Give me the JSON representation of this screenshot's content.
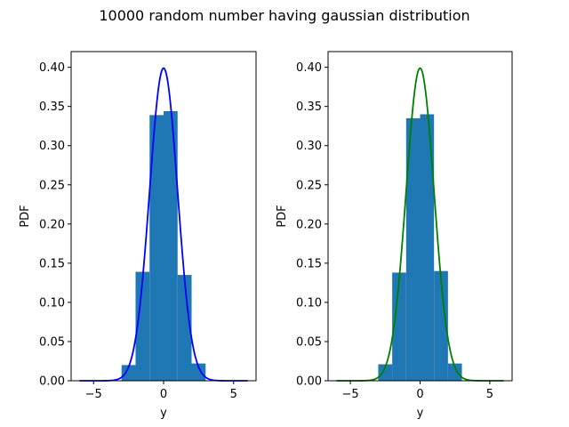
{
  "figure": {
    "suptitle": "10000 random number having gaussian distribution"
  },
  "chart_data": [
    {
      "type": "bar",
      "subtype": "histogram-with-pdf-curve",
      "xlabel": "y",
      "ylabel": "PDF",
      "xlim": [
        -6.6,
        6.6
      ],
      "ylim": [
        0,
        0.42
      ],
      "xticks": [
        -5,
        0,
        5
      ],
      "xtick_labels": [
        "−5",
        "0",
        "5"
      ],
      "yticks": [
        0.0,
        0.05,
        0.1,
        0.15,
        0.2,
        0.25,
        0.3,
        0.35,
        0.4
      ],
      "ytick_labels": [
        "0.00",
        "0.05",
        "0.10",
        "0.15",
        "0.20",
        "0.25",
        "0.30",
        "0.35",
        "0.40"
      ],
      "grid": false,
      "bar_color": "#1f77b4",
      "bins": [
        {
          "x0": -3,
          "x1": -2,
          "density": 0.02
        },
        {
          "x0": -2,
          "x1": -1,
          "density": 0.139
        },
        {
          "x0": -1,
          "x1": 0,
          "density": 0.339
        },
        {
          "x0": 0,
          "x1": 1,
          "density": 0.344
        },
        {
          "x0": 1,
          "x1": 2,
          "density": 0.135
        },
        {
          "x0": 2,
          "x1": 3,
          "density": 0.022
        }
      ],
      "curve": {
        "label": "",
        "color": "#0000ff",
        "mu": 0,
        "sigma": 1,
        "x_range": [
          -6,
          6
        ]
      }
    },
    {
      "type": "bar",
      "subtype": "histogram-with-pdf-curve",
      "xlabel": "y",
      "ylabel": "PDF",
      "xlim": [
        -6.6,
        6.6
      ],
      "ylim": [
        0,
        0.42
      ],
      "xticks": [
        -5,
        0,
        5
      ],
      "xtick_labels": [
        "−5",
        "0",
        "5"
      ],
      "yticks": [
        0.0,
        0.05,
        0.1,
        0.15,
        0.2,
        0.25,
        0.3,
        0.35,
        0.4
      ],
      "ytick_labels": [
        "0.00",
        "0.05",
        "0.10",
        "0.15",
        "0.20",
        "0.25",
        "0.30",
        "0.35",
        "0.40"
      ],
      "grid": false,
      "bar_color": "#1f77b4",
      "bins": [
        {
          "x0": -3,
          "x1": -2,
          "density": 0.021
        },
        {
          "x0": -2,
          "x1": -1,
          "density": 0.138
        },
        {
          "x0": -1,
          "x1": 0,
          "density": 0.335
        },
        {
          "x0": 0,
          "x1": 1,
          "density": 0.34
        },
        {
          "x0": 1,
          "x1": 2,
          "density": 0.14
        },
        {
          "x0": 2,
          "x1": 3,
          "density": 0.022
        }
      ],
      "curve": {
        "label": "",
        "color": "#008000",
        "mu": 0,
        "sigma": 1,
        "x_range": [
          -6,
          6
        ]
      }
    }
  ]
}
